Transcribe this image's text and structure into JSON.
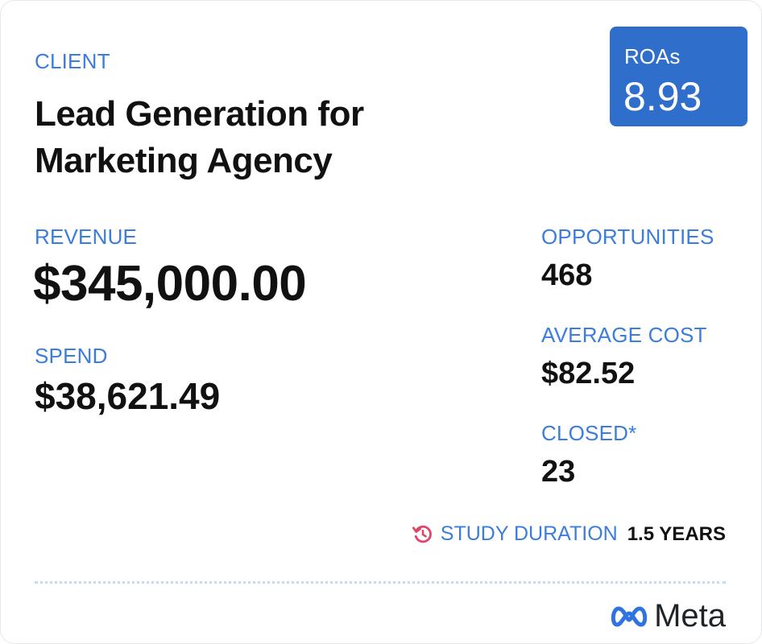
{
  "client_label": "CLIENT",
  "title": "Lead Generation for Marketing Agency",
  "roas": {
    "label": "ROAs",
    "value": "8.93"
  },
  "revenue": {
    "label": "REVENUE",
    "value": "$345,000.00"
  },
  "spend": {
    "label": "SPEND",
    "value": "$38,621.49"
  },
  "opportunities": {
    "label": "OPPORTUNITIES",
    "value": "468"
  },
  "average_cost": {
    "label": "AVERAGE COST",
    "value": "$82.52"
  },
  "closed": {
    "label": "CLOSED*",
    "value": "23"
  },
  "study": {
    "icon": "history-icon",
    "label": "STUDY DURATION",
    "value": "1.5 YEARS"
  },
  "logo": {
    "text": "Meta"
  },
  "colors": {
    "accent": "#3b7ddd",
    "badge": "#2f6fcb",
    "icon": "#e0446a"
  }
}
